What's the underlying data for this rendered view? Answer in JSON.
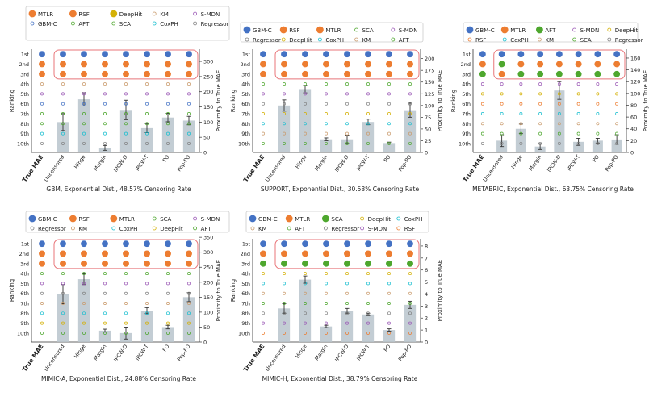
{
  "figure": {
    "description_text_visible": false
  },
  "colors": {
    "series_palette": [
      "#4472c4",
      "#ed7d31",
      "#4ea72e",
      "#a9d18e",
      "#9b59b6",
      "#e74c3c",
      "#c99a6b",
      "#ff79c6",
      "#999999",
      "#d4b106",
      "#17becf",
      "#7f7f7f",
      "#1f77b4"
    ],
    "bar_fill": "#b9c4cc",
    "highlight_box": "#e8767a"
  },
  "chart_data": [
    {
      "type": "bar",
      "title": "GBM, Exponential Dist., 48.57% Censoring Rate",
      "xlabel": "",
      "ylabel": "Ranking",
      "y2label": "Proximity to True MAE",
      "categories": [
        "True MAE",
        "Uncensored",
        "Hinge",
        "Margin",
        "IPCW-D",
        "IPCW-T",
        "PO",
        "Pop-PO"
      ],
      "rank_labels": [
        "1st",
        "2nd",
        "3rd",
        "4th",
        "5th",
        "6th",
        "7th",
        "8th",
        "9th",
        "10th"
      ],
      "y2lim": [
        0,
        340
      ],
      "y2ticks": [
        0,
        50,
        100,
        150,
        200,
        250,
        300
      ],
      "values": [
        null,
        100,
        175,
        15,
        140,
        80,
        115,
        105
      ],
      "errors": [
        null,
        28,
        22,
        8,
        32,
        15,
        14,
        14
      ],
      "legend": [
        "MTLR",
        "RSF",
        "DeepHit",
        "KM",
        "S-MDN",
        "GBM-C",
        "AFT",
        "SCA",
        "CoxPH",
        "Regressor"
      ],
      "top3": [
        [
          "GBM-C",
          "MTLR",
          "RSF"
        ],
        [
          "GBM-C",
          "MTLR",
          "RSF"
        ],
        [
          "GBM-C",
          "MTLR",
          "RSF"
        ],
        [
          "GBM-C",
          "RSF",
          "MTLR"
        ],
        [
          "GBM-C",
          "MTLR",
          "RSF"
        ],
        [
          "GBM-C",
          "MTLR",
          "RSF"
        ],
        [
          "GBM-C",
          "RSF",
          "MTLR"
        ],
        [
          "GBM-C",
          "MTLR",
          "RSF"
        ]
      ]
    },
    {
      "type": "bar",
      "title": "SUPPORT, Exponential Dist., 30.58% Censoring Rate",
      "xlabel": "",
      "ylabel": "Ranking",
      "y2label": "Proximity to True MAE",
      "categories": [
        "True MAE",
        "Uncensored",
        "Hinge",
        "Margin",
        "IPCW-D",
        "IPCW-T",
        "PO",
        "Pop-PO"
      ],
      "rank_labels": [
        "1st",
        "2nd",
        "3rd",
        "4th",
        "5th",
        "6th",
        "7th",
        "8th",
        "9th",
        "10th"
      ],
      "y2lim": [
        0,
        220
      ],
      "y2ticks": [
        0,
        25,
        50,
        75,
        100,
        125,
        150,
        175,
        200
      ],
      "values": [
        null,
        100,
        135,
        28,
        28,
        65,
        20,
        90
      ],
      "errors": [
        null,
        12,
        8,
        3,
        9,
        6,
        2,
        15
      ],
      "legend": [
        "GBM-C",
        "RSF",
        "MTLR",
        "SCA",
        "S-MDN",
        "Regressor",
        "DeepHit",
        "CoxPH",
        "KM",
        "AFT"
      ],
      "top3": [
        [
          "GBM-C",
          "RSF",
          "MTLR"
        ],
        [
          "GBM-C",
          "RSF",
          "MTLR"
        ],
        [
          "GBM-C",
          "RSF",
          "MTLR"
        ],
        [
          "GBM-C",
          "RSF",
          "MTLR"
        ],
        [
          "GBM-C",
          "RSF",
          "MTLR"
        ],
        [
          "GBM-C",
          "RSF",
          "MTLR"
        ],
        [
          "GBM-C",
          "RSF",
          "MTLR"
        ],
        [
          "GBM-C",
          "RSF",
          "MTLR"
        ]
      ]
    },
    {
      "type": "bar",
      "title": "METABRIC, Exponential Dist., 63.75% Censoring Rate",
      "xlabel": "",
      "ylabel": "Ranking",
      "y2label": "Proximity to True MAE",
      "categories": [
        "True MAE",
        "Uncensored",
        "Hinge",
        "Margin",
        "IPCW-D",
        "IPCW-T",
        "PO",
        "Pop-PO"
      ],
      "rank_labels": [
        "1st",
        "2nd",
        "3rd",
        "4th",
        "5th",
        "6th",
        "7th",
        "8th",
        "9th",
        "10th"
      ],
      "y2lim": [
        0,
        175
      ],
      "y2ticks": [
        0,
        20,
        40,
        60,
        80,
        100,
        120,
        140,
        160
      ],
      "values": [
        null,
        20,
        40,
        10,
        105,
        18,
        20,
        22
      ],
      "errors": [
        null,
        10,
        8,
        5,
        15,
        6,
        4,
        8
      ],
      "legend": [
        "GBM-C",
        "MTLR",
        "AFT",
        "S-MDN",
        "DeepHit",
        "RSF",
        "CoxPH",
        "KM",
        "SCA",
        "Regressor"
      ],
      "top3": [
        [
          "GBM-C",
          "MTLR",
          "AFT"
        ],
        [
          "GBM-C",
          "AFT",
          "MTLR"
        ],
        [
          "GBM-C",
          "MTLR",
          "AFT"
        ],
        [
          "GBM-C",
          "MTLR",
          "AFT"
        ],
        [
          "GBM-C",
          "MTLR",
          "AFT"
        ],
        [
          "GBM-C",
          "MTLR",
          "AFT"
        ],
        [
          "GBM-C",
          "MTLR",
          "AFT"
        ],
        [
          "GBM-C",
          "MTLR",
          "AFT"
        ]
      ]
    },
    {
      "type": "bar",
      "title": "MIMIC-A, Exponential Dist., 24.88% Censoring Rate",
      "xlabel": "",
      "ylabel": "Ranking",
      "y2label": "Proximity to True MAE",
      "categories": [
        "True MAE",
        "Uncensored",
        "Hinge",
        "Margin",
        "IPCW-D",
        "IPCW-T",
        "PO",
        "Pop-PO"
      ],
      "rank_labels": [
        "1st",
        "2nd",
        "3rd",
        "4th",
        "5th",
        "6th",
        "7th",
        "8th",
        "9th",
        "10th"
      ],
      "y2lim": [
        0,
        345
      ],
      "y2ticks": [
        0,
        50,
        100,
        150,
        200,
        250,
        300,
        350
      ],
      "values": [
        null,
        160,
        210,
        38,
        30,
        105,
        50,
        150
      ],
      "errors": [
        null,
        32,
        18,
        5,
        20,
        10,
        6,
        15
      ],
      "legend": [
        "GBM-C",
        "RSF",
        "MTLR",
        "SCA",
        "S-MDN",
        "Regressor",
        "KM",
        "CoxPH",
        "DeepHit",
        "AFT"
      ],
      "top3": [
        [
          "GBM-C",
          "RSF",
          "MTLR"
        ],
        [
          "GBM-C",
          "RSF",
          "MTLR"
        ],
        [
          "GBM-C",
          "RSF",
          "MTLR"
        ],
        [
          "GBM-C",
          "MTLR",
          "RSF"
        ],
        [
          "GBM-C",
          "RSF",
          "MTLR"
        ],
        [
          "GBM-C",
          "RSF",
          "MTLR"
        ],
        [
          "GBM-C",
          "MTLR",
          "RSF"
        ],
        [
          "GBM-C",
          "RSF",
          "MTLR"
        ]
      ]
    },
    {
      "type": "bar",
      "title": "MIMIC-H, Exponential Dist., 38.79% Censoring Rate",
      "xlabel": "",
      "ylabel": "Ranking",
      "y2label": "Proximity to True MAE",
      "categories": [
        "True MAE",
        "Uncensored",
        "Hinge",
        "Margin",
        "IPCW-D",
        "IPCW-T",
        "PO",
        "Pop-PO"
      ],
      "rank_labels": [
        "1st",
        "2nd",
        "3rd",
        "4th",
        "5th",
        "6th",
        "7th",
        "8th",
        "9th",
        "10th"
      ],
      "y2lim": [
        0,
        8.6
      ],
      "y2ticks": [
        0,
        1,
        2,
        3,
        4,
        5,
        6,
        7,
        8
      ],
      "values": [
        null,
        2.8,
        5.2,
        1.3,
        2.6,
        2.3,
        1.0,
        3.1
      ],
      "errors": [
        null,
        0.4,
        0.3,
        0.1,
        0.2,
        0.1,
        0.1,
        0.3
      ],
      "legend": [
        "GBM-C",
        "MTLR",
        "SCA",
        "DeepHit",
        "CoxPH",
        "KM",
        "AFT",
        "Regressor",
        "S-MDN",
        "RSF"
      ],
      "top3": [
        [
          "GBM-C",
          "MTLR",
          "SCA"
        ],
        [
          "GBM-C",
          "MTLR",
          "SCA"
        ],
        [
          "GBM-C",
          "MTLR",
          "SCA"
        ],
        [
          "GBM-C",
          "MTLR",
          "SCA"
        ],
        [
          "GBM-C",
          "MTLR",
          "SCA"
        ],
        [
          "GBM-C",
          "MTLR",
          "SCA"
        ],
        [
          "GBM-C",
          "MTLR",
          "SCA"
        ],
        [
          "GBM-C",
          "MTLR",
          "SCA"
        ]
      ]
    }
  ]
}
